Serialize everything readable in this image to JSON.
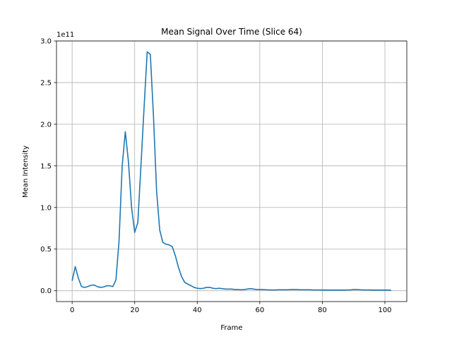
{
  "chart_data": {
    "type": "line",
    "title": "Mean Signal Over Time (Slice 64)",
    "xlabel": "Frame",
    "ylabel": "Mean Intensity",
    "y_offset_text": "1e11",
    "xlim": [
      -5,
      107
    ],
    "ylim": [
      -0.13,
      3.0
    ],
    "xticks": [
      0,
      20,
      40,
      60,
      80,
      100
    ],
    "yticks": [
      0.0,
      0.5,
      1.0,
      1.5,
      2.0,
      2.5,
      3.0
    ],
    "ytick_labels": [
      "0.0",
      "0.5",
      "1.0",
      "1.5",
      "2.0",
      "2.5",
      "3.0"
    ],
    "grid": true,
    "line_color": "#1f77b4",
    "series": [
      {
        "x": [
          0,
          1,
          2,
          3,
          4,
          5,
          6,
          7,
          8,
          9,
          10,
          11,
          12,
          13,
          14,
          15,
          16,
          17,
          18,
          19,
          20,
          21,
          22,
          23,
          24,
          25,
          26,
          27,
          28,
          29,
          30,
          31,
          32,
          33,
          34,
          35,
          36,
          37,
          38,
          39,
          40,
          41,
          42,
          43,
          44,
          45,
          46,
          47,
          48,
          49,
          50,
          51,
          52,
          53,
          54,
          55,
          56,
          57,
          58,
          59,
          60,
          61,
          62,
          63,
          64,
          65,
          66,
          67,
          68,
          69,
          70,
          71,
          72,
          73,
          74,
          75,
          76,
          77,
          78,
          79,
          80,
          81,
          82,
          83,
          84,
          85,
          86,
          87,
          88,
          89,
          90,
          91,
          92,
          93,
          94,
          95,
          96,
          97,
          98,
          99,
          100,
          101,
          102
        ],
        "y": [
          0.12,
          0.29,
          0.15,
          0.05,
          0.04,
          0.05,
          0.065,
          0.07,
          0.05,
          0.04,
          0.045,
          0.06,
          0.06,
          0.05,
          0.13,
          0.6,
          1.5,
          1.91,
          1.55,
          1.0,
          0.7,
          0.82,
          1.5,
          2.2,
          2.87,
          2.84,
          2.1,
          1.2,
          0.73,
          0.58,
          0.56,
          0.55,
          0.53,
          0.42,
          0.28,
          0.17,
          0.1,
          0.08,
          0.06,
          0.04,
          0.03,
          0.025,
          0.03,
          0.04,
          0.04,
          0.03,
          0.025,
          0.03,
          0.025,
          0.02,
          0.02,
          0.02,
          0.015,
          0.015,
          0.012,
          0.015,
          0.02,
          0.025,
          0.02,
          0.015,
          0.015,
          0.015,
          0.012,
          0.01,
          0.01,
          0.01,
          0.012,
          0.012,
          0.012,
          0.012,
          0.015,
          0.015,
          0.015,
          0.012,
          0.012,
          0.012,
          0.012,
          0.01,
          0.01,
          0.01,
          0.008,
          0.008,
          0.008,
          0.008,
          0.008,
          0.008,
          0.008,
          0.008,
          0.01,
          0.01,
          0.015,
          0.015,
          0.012,
          0.01,
          0.01,
          0.01,
          0.008,
          0.008,
          0.008,
          0.008,
          0.008,
          0.008,
          0.005
        ]
      }
    ]
  }
}
